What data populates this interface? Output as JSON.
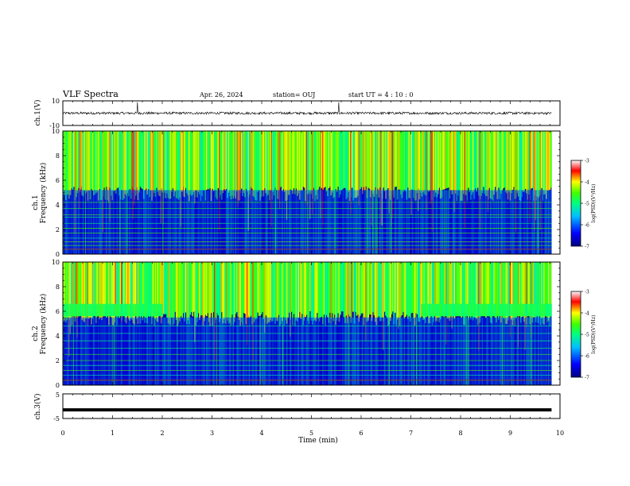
{
  "header": {
    "title": "VLF Spectra",
    "date": "Apr. 26, 2024",
    "station": "station= OUJ",
    "start_ut": "start  UT =   4 : 10 : 0"
  },
  "chart_data": [
    {
      "type": "line",
      "ylabel": "ch.1(V)",
      "ylim": [
        -10,
        10
      ],
      "yticks": [
        "10",
        "-10"
      ],
      "xlim": [
        0,
        10
      ],
      "baseline": 0,
      "noise_amplitude": 1,
      "spikes_x_min": [
        1.5,
        5.55
      ],
      "color": "#000000"
    },
    {
      "type": "heatmap",
      "ylabel": "Frequency (kHz)",
      "ylabel_ch": "ch.1",
      "ylim": [
        0,
        10
      ],
      "yticks": [
        "0",
        "2",
        "4",
        "6",
        "8",
        "10"
      ],
      "xlim": [
        0,
        10
      ],
      "data_end_min": 9.83,
      "colorbar": {
        "label": "log(PSD)(V²/Hz)",
        "range": [
          -7,
          -3
        ],
        "ticks": [
          "-3",
          "-4",
          "-5",
          "-6",
          "-7"
        ]
      },
      "noise_floor_top_khz": 5.2,
      "background_low_khz": 4.8,
      "sferic_band_khz": [
        5.5,
        10
      ]
    },
    {
      "type": "heatmap",
      "ylabel": "Frequency (kHz)",
      "ylabel_ch": "ch.2",
      "ylim": [
        0,
        10
      ],
      "yticks": [
        "0",
        "2",
        "4",
        "6",
        "8",
        "10"
      ],
      "xlim": [
        0,
        10
      ],
      "data_end_min": 9.83,
      "colorbar": {
        "label": "log(PSD)(V²/Hz)",
        "range": [
          -7,
          -3
        ],
        "ticks": [
          "-3",
          "-4",
          "-5",
          "-6",
          "-7"
        ]
      },
      "hiss_band_khz": [
        5.6,
        6.6
      ],
      "hiss_intervals_min": [
        [
          0,
          2.0
        ],
        [
          7.2,
          9.83
        ]
      ],
      "sferic_band_khz": [
        6.0,
        10
      ]
    },
    {
      "type": "line",
      "ylabel": "ch.3(V)",
      "ylim": [
        -5,
        5
      ],
      "yticks": [
        "5",
        "-5"
      ],
      "xlim": [
        0,
        10
      ],
      "constant_value": -1.5,
      "color": "#000000"
    }
  ],
  "xaxis": {
    "label": "Time (min)",
    "ticks": [
      "0",
      "1",
      "2",
      "3",
      "4",
      "5",
      "6",
      "7",
      "8",
      "9",
      "10"
    ]
  }
}
